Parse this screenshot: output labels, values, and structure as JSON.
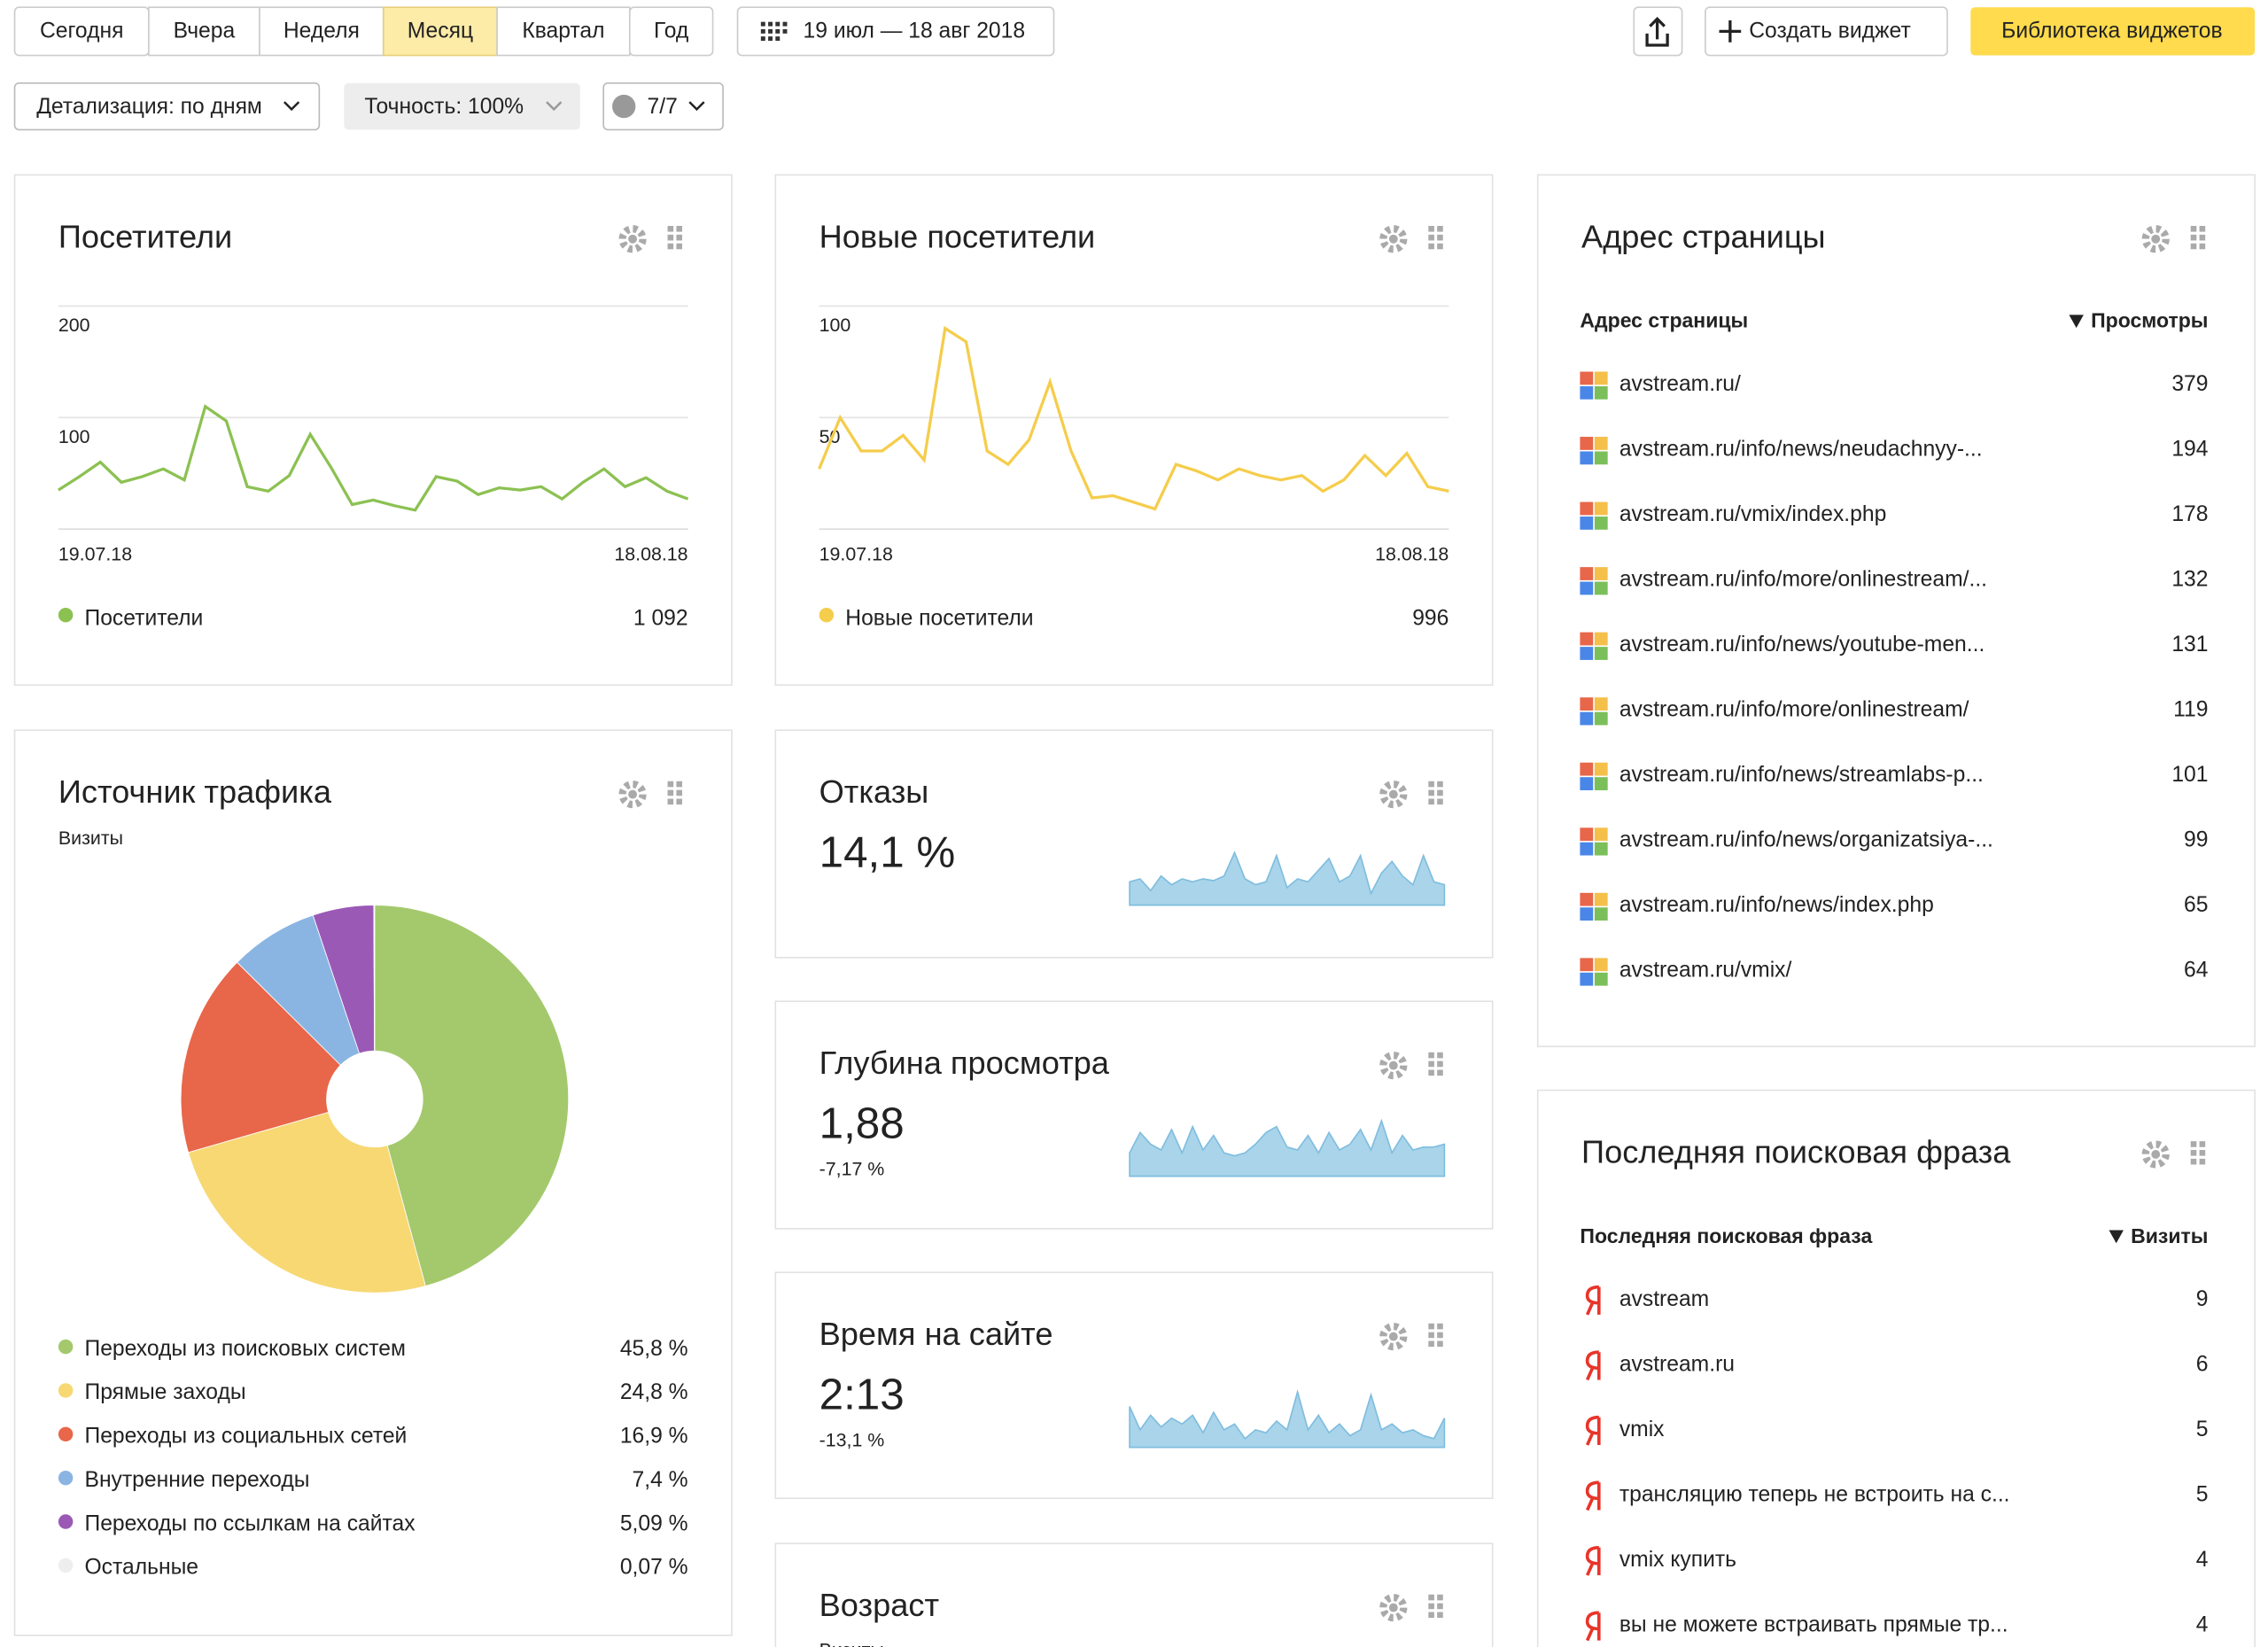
{
  "toolbar": {
    "periods": [
      {
        "label": "Сегодня",
        "selected": false
      },
      {
        "label": "Вчера",
        "selected": false
      },
      {
        "label": "Неделя",
        "selected": false
      },
      {
        "label": "Месяц",
        "selected": true
      },
      {
        "label": "Квартал",
        "selected": false
      },
      {
        "label": "Год",
        "selected": false
      }
    ],
    "date_range": "19 июл — 18 авг 2018",
    "create_widget": "Создать виджет",
    "library": "Библиотека виджетов",
    "detail": "Детализация: по дням",
    "accuracy": "Точность: 100%",
    "filter": "7/7"
  },
  "widgets": {
    "visitors": {
      "title": "Посетители",
      "chart": {
        "type": "line",
        "categories": [
          "19.07.18",
          null,
          null,
          null,
          null,
          null,
          null,
          null,
          null,
          null,
          null,
          null,
          null,
          null,
          null,
          null,
          null,
          null,
          null,
          null,
          null,
          null,
          null,
          null,
          null,
          null,
          null,
          null,
          null,
          null,
          "18.08.18"
        ],
        "ylim": [
          0,
          200
        ],
        "yticks": [
          100,
          200
        ],
        "grid": true,
        "series": [
          {
            "name": "Посетители",
            "color": "#8cc152",
            "values": [
              35,
              47,
              60,
              42,
              47,
              54,
              44,
              110,
              97,
              38,
              34,
              48,
              85,
              55,
              22,
              26,
              21,
              17,
              47,
              43,
              31,
              37,
              35,
              38,
              27,
              42,
              54,
              38,
              46,
              34,
              27
            ]
          }
        ],
        "total": {
          "value": 1092,
          "label": "1 092"
        }
      }
    },
    "new_visitors": {
      "title": "Новые посетители",
      "chart": {
        "type": "line",
        "categories": [
          "19.07.18",
          null,
          null,
          null,
          null,
          null,
          null,
          null,
          null,
          null,
          null,
          null,
          null,
          null,
          null,
          null,
          null,
          null,
          null,
          null,
          null,
          null,
          null,
          null,
          null,
          null,
          null,
          null,
          null,
          null,
          "18.08.18"
        ],
        "ylim": [
          0,
          100
        ],
        "yticks": [
          50,
          100
        ],
        "grid": true,
        "series": [
          {
            "name": "Новые посетители",
            "color": "#f5cd4c",
            "values": [
              27,
              50,
              35,
              35,
              42,
              31,
              90,
              84,
              35,
              29,
              40,
              66,
              35,
              14,
              15,
              12,
              9,
              29,
              26,
              22,
              27,
              24,
              22,
              24,
              17,
              22,
              33,
              24,
              34,
              19,
              17
            ]
          }
        ],
        "total": 996
      }
    },
    "traffic": {
      "title": "Источник трафика",
      "subtitle": "Визиты",
      "chart": {
        "type": "pie",
        "categories": [
          "Переходы из поисковых систем",
          "Прямые заходы",
          "Переходы из социальных сетей",
          "Внутренние переходы",
          "Переходы по ссылкам на сайтах",
          "Остальные"
        ],
        "values": [
          45.8,
          24.8,
          16.9,
          7.4,
          5.09,
          0.07
        ],
        "value_labels": [
          "45,8 %",
          "24,8 %",
          "16,9 %",
          "7,4 %",
          "5,09 %",
          "0,07 %"
        ],
        "colors": [
          "#a3c96c",
          "#f7d873",
          "#e8664a",
          "#8ab5e3",
          "#9b59b6",
          "#eeeeee"
        ]
      }
    },
    "bounce": {
      "title": "Отказы",
      "value": "14,1 %",
      "chart": {
        "type": "area",
        "ylim": [
          0,
          100
        ],
        "color": "#a9d4ea",
        "values": [
          40,
          45,
          25,
          50,
          35,
          45,
          40,
          45,
          42,
          50,
          90,
          45,
          35,
          40,
          85,
          30,
          45,
          40,
          60,
          80,
          40,
          50,
          85,
          20,
          55,
          75,
          50,
          35,
          85,
          40,
          35
        ]
      }
    },
    "depth": {
      "title": "Глубина просмотра",
      "value": "1,88",
      "change": "-7,17 %",
      "chart": {
        "type": "area",
        "ylim": [
          0,
          100
        ],
        "color": "#a9d4ea",
        "values": [
          40,
          75,
          55,
          45,
          80,
          40,
          85,
          45,
          70,
          40,
          35,
          40,
          55,
          75,
          85,
          50,
          45,
          70,
          40,
          75,
          45,
          55,
          80,
          45,
          95,
          40,
          70,
          45,
          50,
          50,
          55
        ]
      }
    },
    "time": {
      "title": "Время на сайте",
      "value": "2:13",
      "change": "-13,1 %",
      "chart": {
        "type": "area",
        "ylim": [
          0,
          100
        ],
        "color": "#a9d4ea",
        "values": [
          70,
          30,
          55,
          35,
          50,
          40,
          55,
          25,
          60,
          30,
          40,
          15,
          30,
          25,
          45,
          30,
          95,
          30,
          55,
          25,
          40,
          20,
          30,
          90,
          30,
          40,
          25,
          30,
          20,
          15,
          50
        ]
      }
    },
    "age": {
      "title": "Возраст",
      "subtitle": "Визиты"
    },
    "pages": {
      "title": "Адрес страницы",
      "columns": [
        "Адрес страницы",
        "Просмотры"
      ],
      "rows": [
        {
          "url": "avstream.ru/",
          "views": "379",
          "color": "#5c6a8a"
        },
        {
          "url": "avstream.ru/info/news/neudachnyy-...",
          "views": "194",
          "color": "#5c6a8a"
        },
        {
          "url": "avstream.ru/vmix/index.php",
          "views": "178",
          "color": "#5c6a8a"
        },
        {
          "url": "avstream.ru/info/more/onlinestream/...",
          "views": "132",
          "color": "#5c6a8a"
        },
        {
          "url": "avstream.ru/info/news/youtube-men...",
          "views": "131",
          "color": "#1f3d99"
        },
        {
          "url": "avstream.ru/info/more/onlinestream/",
          "views": "119",
          "color": "#5c6a8a"
        },
        {
          "url": "avstream.ru/info/news/streamlabs-p...",
          "views": "101",
          "color": "#1f3d99"
        },
        {
          "url": "avstream.ru/info/news/organizatsiya-...",
          "views": "99",
          "color": "#5c6a8a"
        },
        {
          "url": "avstream.ru/info/news/index.php",
          "views": "65",
          "color": "#5c6a8a"
        },
        {
          "url": "avstream.ru/vmix/",
          "views": "64",
          "color": "#5c6a8a"
        }
      ]
    },
    "search": {
      "title": "Последняя поисковая фраза",
      "columns": [
        "Последняя поисковая фраза",
        "Визиты"
      ],
      "rows": [
        {
          "phrase": "avstream",
          "visits": "9"
        },
        {
          "phrase": "avstream.ru",
          "visits": "6"
        },
        {
          "phrase": "vmix",
          "visits": "5"
        },
        {
          "phrase": "трансляцию теперь не встроить на с...",
          "visits": "5"
        },
        {
          "phrase": "vmix купить",
          "visits": "4"
        },
        {
          "phrase": "вы не можете встраивать прямые тр...",
          "visits": "4"
        }
      ]
    }
  }
}
